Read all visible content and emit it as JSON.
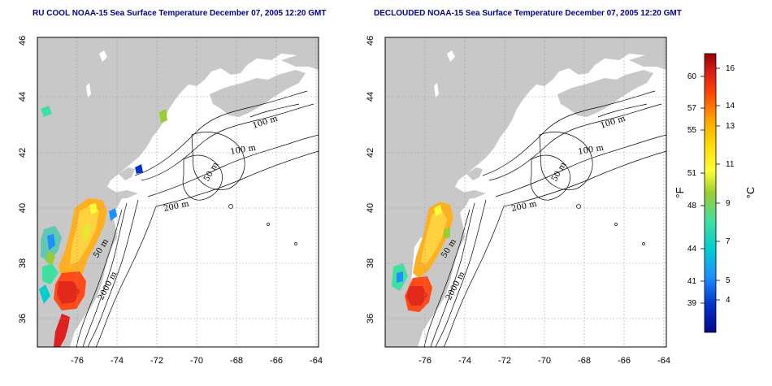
{
  "panels": [
    {
      "id": "left",
      "title": "RU COOL NOAA-15 Sea Surface Temperature December 07, 2005 12:20 GMT",
      "contour_labels": [
        "100 m",
        "100 m",
        "50 m",
        "200 m",
        "50 m",
        "2000 m"
      ]
    },
    {
      "id": "right",
      "title": "DECLOUDED NOAA-15 Sea Surface Temperature December 07, 2005 12:20 GMT",
      "contour_labels": [
        "100 m",
        "100 m",
        "50 m",
        "200 m",
        "50 m",
        "2000 m"
      ]
    }
  ],
  "x_ticks": [
    "-76",
    "-74",
    "-72",
    "-70",
    "-68",
    "-66",
    "-64"
  ],
  "y_ticks": [
    "36",
    "38",
    "40",
    "42",
    "44",
    "46"
  ],
  "colorbar": {
    "fahrenheit_unit": "°F",
    "celsius_unit": "°C",
    "fahrenheit_ticks": [
      "60",
      "57",
      "55",
      "51",
      "48",
      "44",
      "41",
      "39"
    ],
    "celsius_ticks": [
      "16",
      "14",
      "13",
      "11",
      "9",
      "7",
      "5",
      "4"
    ],
    "colors": [
      "#08088a",
      "#0033cc",
      "#1e90ff",
      "#00ced1",
      "#40e0a0",
      "#9acd32",
      "#ffff33",
      "#ffd700",
      "#ffa500",
      "#ff4500",
      "#d41a1a",
      "#990000"
    ]
  },
  "colors": {
    "land": "#c8c8c8",
    "title_text": "#00008b",
    "grid": "#a0a0a0"
  }
}
